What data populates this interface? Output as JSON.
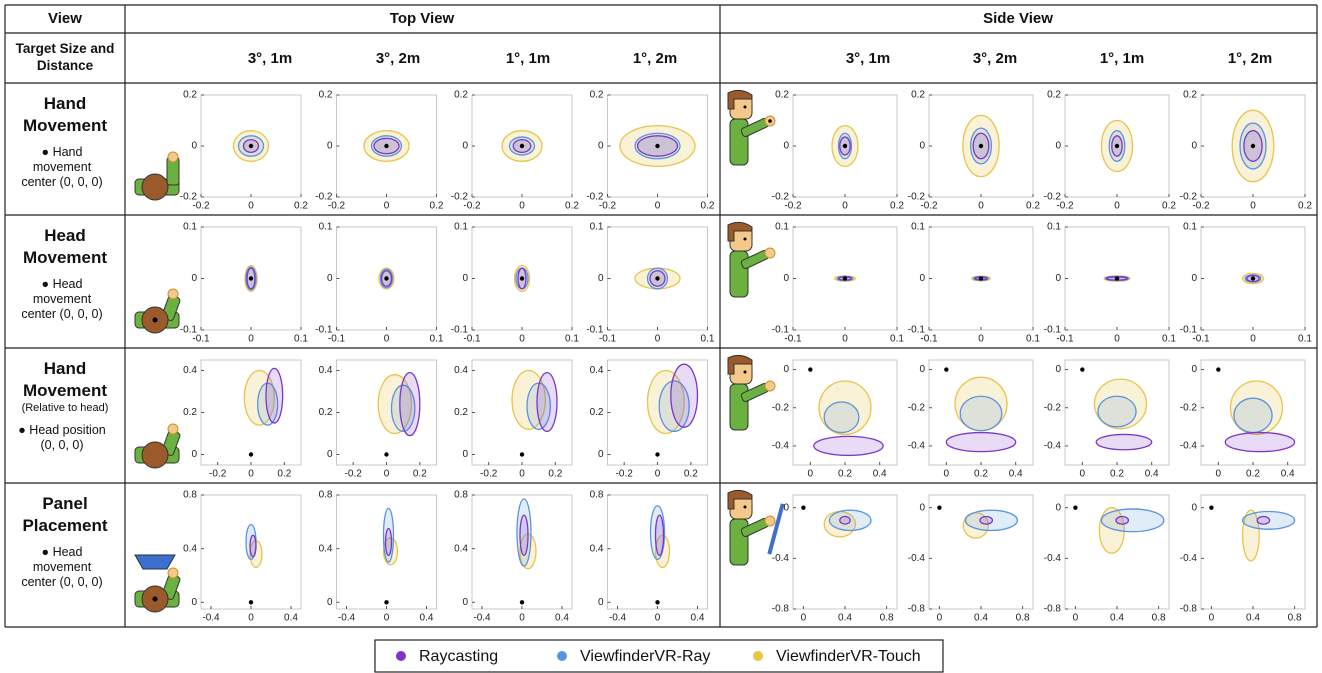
{
  "header": {
    "view": "View",
    "top_view": "Top View",
    "side_view": "Side View",
    "target": "Target Size and Distance",
    "conditions": [
      "3°, 1m",
      "3°, 2m",
      "1°, 1m",
      "1°, 2m",
      "3°, 1m",
      "3°, 2m",
      "1°, 1m",
      "1°, 2m"
    ]
  },
  "rows": [
    {
      "title": "Hand Movement",
      "note": "● Hand movement center (0, 0, 0)",
      "top_axes": {
        "xlim": [
          -0.2,
          0.2
        ],
        "ylim": [
          -0.2,
          0.2
        ],
        "xticks": [
          -0.2,
          0,
          0.2
        ],
        "yticks": [
          -0.2,
          0,
          0.2
        ]
      },
      "side_axes": {
        "xlim": [
          -0.2,
          0.2
        ],
        "ylim": [
          -0.2,
          0.2
        ],
        "xticks": [
          -0.2,
          0,
          0.2
        ],
        "yticks": [
          -0.2,
          0,
          0.2
        ]
      },
      "plots": [
        {
          "dot": [
            0,
            0
          ],
          "ellipses": [
            [
              0,
              0,
              0.03,
              0.025
            ],
            [
              0,
              0,
              0.05,
              0.04
            ],
            [
              0,
              0,
              0.07,
              0.06
            ]
          ]
        },
        {
          "dot": [
            0,
            0
          ],
          "ellipses": [
            [
              0,
              0,
              0.05,
              0.03
            ],
            [
              0,
              0,
              0.06,
              0.04
            ],
            [
              0,
              0,
              0.09,
              0.06
            ]
          ]
        },
        {
          "dot": [
            0,
            0
          ],
          "ellipses": [
            [
              0,
              0,
              0.035,
              0.025
            ],
            [
              0,
              0,
              0.05,
              0.035
            ],
            [
              0,
              0,
              0.08,
              0.06
            ]
          ]
        },
        {
          "dot": [
            0,
            0
          ],
          "ellipses": [
            [
              0,
              0,
              0.08,
              0.04
            ],
            [
              0,
              0,
              0.09,
              0.05
            ],
            [
              0,
              0,
              0.15,
              0.08
            ]
          ]
        },
        {
          "dot": [
            0,
            0
          ],
          "ellipses": [
            [
              0,
              0,
              0.02,
              0.035
            ],
            [
              0,
              0,
              0.025,
              0.05
            ],
            [
              0,
              0,
              0.05,
              0.08
            ]
          ]
        },
        {
          "dot": [
            0,
            0
          ],
          "ellipses": [
            [
              0,
              0,
              0.03,
              0.05
            ],
            [
              0,
              0,
              0.04,
              0.07
            ],
            [
              0,
              0,
              0.07,
              0.12
            ]
          ]
        },
        {
          "dot": [
            0,
            0
          ],
          "ellipses": [
            [
              0,
              0,
              0.02,
              0.04
            ],
            [
              0,
              0,
              0.03,
              0.06
            ],
            [
              0,
              0,
              0.06,
              0.1
            ]
          ]
        },
        {
          "dot": [
            0,
            0
          ],
          "ellipses": [
            [
              0,
              0,
              0.035,
              0.06
            ],
            [
              0,
              0,
              0.05,
              0.09
            ],
            [
              0,
              0,
              0.08,
              0.14
            ]
          ]
        }
      ]
    },
    {
      "title": "Head Movement",
      "note": "● Head movement center (0, 0, 0)",
      "top_axes": {
        "xlim": [
          -0.1,
          0.1
        ],
        "ylim": [
          -0.1,
          0.1
        ],
        "xticks": [
          -0.1,
          0,
          0.1
        ],
        "yticks": [
          -0.1,
          0,
          0.1
        ]
      },
      "side_axes": {
        "xlim": [
          -0.1,
          0.1
        ],
        "ylim": [
          -0.1,
          0.1
        ],
        "xticks": [
          -0.1,
          0,
          0.1
        ],
        "yticks": [
          -0.1,
          0,
          0.1
        ]
      },
      "plots": [
        {
          "dot": [
            0,
            0
          ],
          "ellipses": [
            [
              0,
              0,
              0.008,
              0.02
            ],
            [
              0,
              0,
              0.01,
              0.022
            ],
            [
              0,
              0,
              0.012,
              0.025
            ]
          ]
        },
        {
          "dot": [
            0,
            0
          ],
          "ellipses": [
            [
              0,
              0,
              0.01,
              0.015
            ],
            [
              0,
              0,
              0.012,
              0.018
            ],
            [
              0,
              0,
              0.015,
              0.02
            ]
          ]
        },
        {
          "dot": [
            0,
            0
          ],
          "ellipses": [
            [
              0,
              0,
              0.008,
              0.02
            ],
            [
              0,
              0,
              0.012,
              0.02
            ],
            [
              0,
              0,
              0.015,
              0.025
            ]
          ]
        },
        {
          "dot": [
            0,
            0
          ],
          "ellipses": [
            [
              0,
              0,
              0.015,
              0.015
            ],
            [
              0,
              0,
              0.02,
              0.02
            ],
            [
              0,
              0,
              0.045,
              0.02
            ]
          ]
        },
        {
          "dot": [
            0,
            0
          ],
          "ellipses": [
            [
              0,
              0,
              0.012,
              0.003
            ],
            [
              0,
              0,
              0.015,
              0.004
            ],
            [
              0,
              0,
              0.02,
              0.005
            ]
          ]
        },
        {
          "dot": [
            0,
            0
          ],
          "ellipses": [
            [
              0,
              0,
              0.012,
              0.0025
            ],
            [
              0,
              0,
              0.014,
              0.0035
            ],
            [
              0,
              0,
              0.018,
              0.0045
            ]
          ]
        },
        {
          "dot": [
            0,
            0
          ],
          "ellipses": [
            [
              0,
              0,
              0.02,
              0.003
            ],
            [
              0,
              0,
              0.022,
              0.004
            ],
            [
              0,
              0,
              0.025,
              0.005
            ]
          ]
        },
        {
          "dot": [
            0,
            0
          ],
          "ellipses": [
            [
              0,
              0,
              0.012,
              0.006
            ],
            [
              0,
              0,
              0.015,
              0.007
            ],
            [
              0,
              0,
              0.02,
              0.01
            ]
          ]
        }
      ]
    },
    {
      "title": "Hand Movement",
      "subtitle": "(Relative to head)",
      "note": "● Head position (0, 0, 0)",
      "top_axes": {
        "xlim": [
          -0.3,
          0.3
        ],
        "ylim": [
          -0.05,
          0.45
        ],
        "xticks": [
          -0.2,
          0,
          0.2
        ],
        "yticks": [
          0,
          0.2,
          0.4
        ]
      },
      "side_axes": {
        "xlim": [
          -0.1,
          0.5
        ],
        "ylim": [
          -0.5,
          0.05
        ],
        "xticks": [
          0,
          0.2,
          0.4
        ],
        "yticks": [
          -0.4,
          -0.2,
          0
        ]
      },
      "plots": [
        {
          "dot": [
            0,
            0
          ],
          "ellipses": [
            [
              0.14,
              0.28,
              0.05,
              0.13
            ],
            [
              0.1,
              0.24,
              0.06,
              0.1
            ],
            [
              0.05,
              0.27,
              0.09,
              0.13
            ]
          ]
        },
        {
          "dot": [
            0,
            0
          ],
          "ellipses": [
            [
              0.14,
              0.24,
              0.06,
              0.15
            ],
            [
              0.1,
              0.22,
              0.07,
              0.11
            ],
            [
              0.05,
              0.24,
              0.1,
              0.14
            ]
          ]
        },
        {
          "dot": [
            0,
            0
          ],
          "ellipses": [
            [
              0.15,
              0.25,
              0.06,
              0.14
            ],
            [
              0.1,
              0.23,
              0.07,
              0.11
            ],
            [
              0.04,
              0.26,
              0.1,
              0.14
            ]
          ]
        },
        {
          "dot": [
            0,
            0
          ],
          "ellipses": [
            [
              0.16,
              0.28,
              0.08,
              0.15
            ],
            [
              0.1,
              0.23,
              0.09,
              0.12
            ],
            [
              0.05,
              0.25,
              0.11,
              0.15
            ]
          ]
        },
        {
          "dot": [
            0,
            0
          ],
          "ellipses": [
            [
              0.22,
              -0.4,
              0.2,
              0.05
            ],
            [
              0.18,
              -0.25,
              0.1,
              0.08
            ],
            [
              0.2,
              -0.2,
              0.15,
              0.14
            ]
          ]
        },
        {
          "dot": [
            0,
            0
          ],
          "ellipses": [
            [
              0.2,
              -0.38,
              0.2,
              0.05
            ],
            [
              0.2,
              -0.23,
              0.12,
              0.09
            ],
            [
              0.2,
              -0.18,
              0.15,
              0.14
            ]
          ]
        },
        {
          "dot": [
            0,
            0
          ],
          "ellipses": [
            [
              0.24,
              -0.38,
              0.16,
              0.04
            ],
            [
              0.2,
              -0.22,
              0.11,
              0.08
            ],
            [
              0.22,
              -0.18,
              0.15,
              0.13
            ]
          ]
        },
        {
          "dot": [
            0,
            0
          ],
          "ellipses": [
            [
              0.24,
              -0.38,
              0.2,
              0.05
            ],
            [
              0.2,
              -0.24,
              0.11,
              0.09
            ],
            [
              0.22,
              -0.2,
              0.15,
              0.14
            ]
          ]
        }
      ]
    },
    {
      "title": "Panel Placement",
      "note": "● Head movement center (0, 0, 0)",
      "top_axes": {
        "xlim": [
          -0.5,
          0.5
        ],
        "ylim": [
          -0.05,
          0.8
        ],
        "xticks": [
          -0.4,
          0,
          0.4
        ],
        "yticks": [
          0,
          0.4,
          0.8
        ]
      },
      "side_axes": {
        "xlim": [
          -0.1,
          0.9
        ],
        "ylim": [
          -0.8,
          0.1
        ],
        "xticks": [
          0,
          0.4,
          0.8
        ],
        "yticks": [
          -0.8,
          -0.4,
          0
        ]
      },
      "plots": [
        {
          "dot": [
            0,
            0
          ],
          "ellipses": [
            [
              0.02,
              0.42,
              0.03,
              0.08
            ],
            [
              0,
              0.45,
              0.05,
              0.13
            ],
            [
              0.05,
              0.36,
              0.06,
              0.1
            ]
          ]
        },
        {
          "dot": [
            0,
            0
          ],
          "ellipses": [
            [
              0.02,
              0.45,
              0.03,
              0.1
            ],
            [
              0.02,
              0.5,
              0.05,
              0.2
            ],
            [
              0.04,
              0.38,
              0.07,
              0.1
            ]
          ]
        },
        {
          "dot": [
            0,
            0
          ],
          "ellipses": [
            [
              0.02,
              0.5,
              0.04,
              0.15
            ],
            [
              0.02,
              0.52,
              0.07,
              0.25
            ],
            [
              0.06,
              0.38,
              0.08,
              0.13
            ]
          ]
        },
        {
          "dot": [
            0,
            0
          ],
          "ellipses": [
            [
              0.02,
              0.5,
              0.04,
              0.15
            ],
            [
              0,
              0.52,
              0.07,
              0.2
            ],
            [
              0.05,
              0.38,
              0.07,
              0.12
            ]
          ]
        },
        {
          "dot": [
            0,
            0
          ],
          "ellipses": [
            [
              0.4,
              -0.1,
              0.05,
              0.03
            ],
            [
              0.45,
              -0.1,
              0.2,
              0.08
            ],
            [
              0.35,
              -0.13,
              0.15,
              0.1
            ]
          ]
        },
        {
          "dot": [
            0,
            0
          ],
          "ellipses": [
            [
              0.45,
              -0.1,
              0.06,
              0.03
            ],
            [
              0.5,
              -0.1,
              0.25,
              0.08
            ],
            [
              0.35,
              -0.14,
              0.12,
              0.1
            ]
          ]
        },
        {
          "dot": [
            0,
            0
          ],
          "ellipses": [
            [
              0.45,
              -0.1,
              0.06,
              0.03
            ],
            [
              0.55,
              -0.1,
              0.3,
              0.09
            ],
            [
              0.35,
              -0.18,
              0.12,
              0.18
            ]
          ]
        },
        {
          "dot": [
            0,
            0
          ],
          "ellipses": [
            [
              0.5,
              -0.1,
              0.06,
              0.03
            ],
            [
              0.55,
              -0.1,
              0.25,
              0.07
            ],
            [
              0.38,
              -0.22,
              0.08,
              0.2
            ]
          ]
        }
      ]
    }
  ],
  "legend": [
    {
      "name": "Raycasting",
      "color": "#7b35c9"
    },
    {
      "name": "ViewfinderVR-Ray",
      "color": "#5b93e0"
    },
    {
      "name": "ViewfinderVR-Touch",
      "color": "#e8c44a"
    }
  ]
}
